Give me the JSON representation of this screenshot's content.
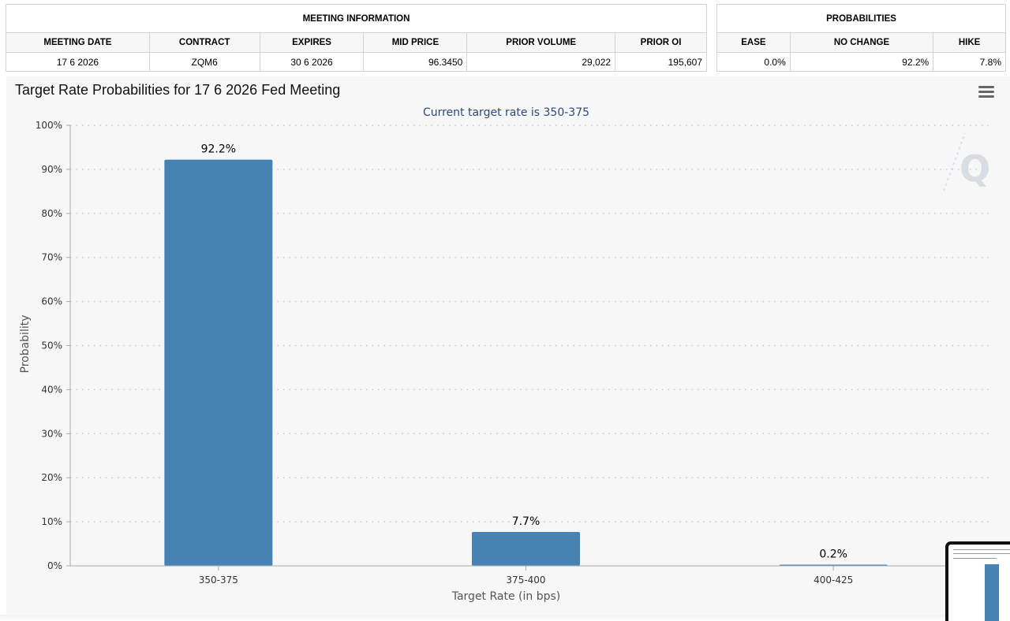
{
  "meeting_info": {
    "group_label": "MEETING INFORMATION",
    "headers": [
      "MEETING DATE",
      "CONTRACT",
      "EXPIRES",
      "MID PRICE",
      "PRIOR VOLUME",
      "PRIOR OI"
    ],
    "values": [
      "17 6 2026",
      "ZQM6",
      "30 6 2026",
      "96.3450",
      "29,022",
      "195,607"
    ]
  },
  "probabilities": {
    "group_label": "PROBABILITIES",
    "headers": [
      "EASE",
      "NO CHANGE",
      "HIKE"
    ],
    "values": [
      "0.0%",
      "92.2%",
      "7.8%"
    ]
  },
  "chart": {
    "title": "Target Rate Probabilities for 17 6 2026 Fed Meeting",
    "menu_icon": "hamburger-menu-icon",
    "watermark_icon": "q-logo-icon"
  },
  "chart_data": {
    "type": "bar",
    "title": "Target Rate Probabilities for 17 6 2026 Fed Meeting",
    "subtitle": "Current target rate is 350-375",
    "categories": [
      "350-375",
      "375-400",
      "400-425"
    ],
    "values": [
      92.2,
      7.7,
      0.2
    ],
    "data_labels": [
      "92.2%",
      "7.7%",
      "0.2%"
    ],
    "xlabel": "Target Rate (in bps)",
    "ylabel": "Probability",
    "ylim": [
      0,
      100
    ],
    "yticks": [
      "0%",
      "10%",
      "20%",
      "30%",
      "40%",
      "50%",
      "60%",
      "70%",
      "80%",
      "90%",
      "100%"
    ],
    "grid": true,
    "bar_color": "#4682b4"
  }
}
